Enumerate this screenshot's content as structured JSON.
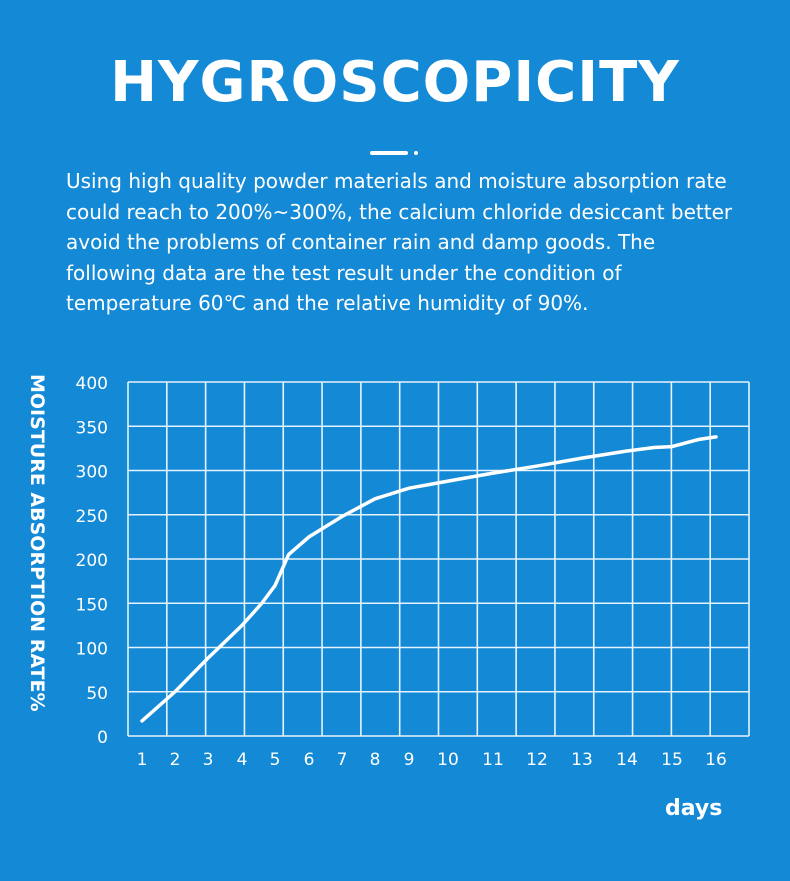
{
  "header": {
    "title": "HYGROSCOPICITY",
    "description": "Using high quality powder materials and moisture absorption rate could reach to 200%~300%, the calcium chloride desiccant better avoid the problems of container rain and damp goods. The following data are the test result under the condition of temperature 60℃ and the relative humidity of 90%."
  },
  "colors": {
    "background": "#1489d6",
    "grid": "#e6f3fc",
    "line": "#ffffff"
  },
  "chart_data": {
    "type": "line",
    "title": "",
    "xlabel": "days",
    "ylabel": "MOISTURE ABSORPTION RATE%",
    "x_ticks": [
      1,
      2,
      3,
      4,
      5,
      6,
      7,
      8,
      9,
      10,
      11,
      12,
      13,
      14,
      15,
      16
    ],
    "y_ticks": [
      0,
      50,
      100,
      150,
      200,
      250,
      300,
      350,
      400
    ],
    "ylim": [
      0,
      400
    ],
    "grid": true,
    "series": [
      {
        "points": [
          [
            1,
            17
          ],
          [
            2,
            50
          ],
          [
            3,
            88
          ],
          [
            4,
            125
          ],
          [
            4.6,
            150
          ],
          [
            5,
            170
          ],
          [
            5.4,
            205
          ],
          [
            6,
            225
          ],
          [
            7,
            248
          ],
          [
            8,
            268
          ],
          [
            9,
            280
          ],
          [
            10,
            288
          ],
          [
            11,
            297
          ],
          [
            12,
            305
          ],
          [
            13,
            314
          ],
          [
            14,
            322
          ],
          [
            14.6,
            326
          ],
          [
            15,
            327
          ],
          [
            15.6,
            335
          ],
          [
            16,
            338
          ]
        ]
      }
    ]
  }
}
